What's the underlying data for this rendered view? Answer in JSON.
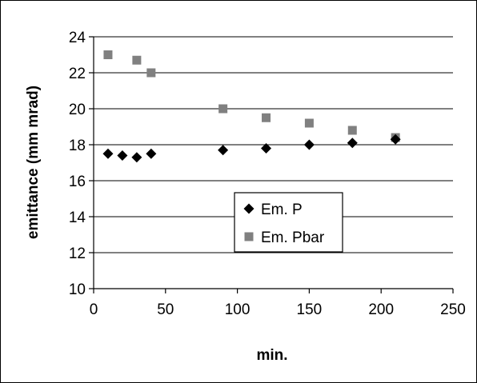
{
  "chart_data": {
    "type": "scatter",
    "xlabel": "min.",
    "ylabel": "emittance (mm mrad)",
    "xlim": [
      0,
      250
    ],
    "ylim": [
      10,
      24
    ],
    "xticks": [
      0,
      50,
      100,
      150,
      200,
      250
    ],
    "yticks": [
      10,
      12,
      14,
      16,
      18,
      20,
      22,
      24
    ],
    "grid": "horizontal",
    "legend_position": "center-right",
    "series": [
      {
        "name": "Em. P",
        "marker": "diamond",
        "color": "#000000",
        "x": [
          10,
          20,
          30,
          40,
          90,
          120,
          150,
          180,
          210
        ],
        "y": [
          17.5,
          17.4,
          17.3,
          17.5,
          17.7,
          17.8,
          18.0,
          18.1,
          18.3
        ]
      },
      {
        "name": "Em. Pbar",
        "marker": "square",
        "color": "#808080",
        "x": [
          10,
          30,
          40,
          90,
          120,
          150,
          180,
          210
        ],
        "y": [
          23.0,
          22.7,
          22.0,
          20.0,
          19.5,
          19.2,
          18.8,
          18.4
        ]
      }
    ]
  }
}
